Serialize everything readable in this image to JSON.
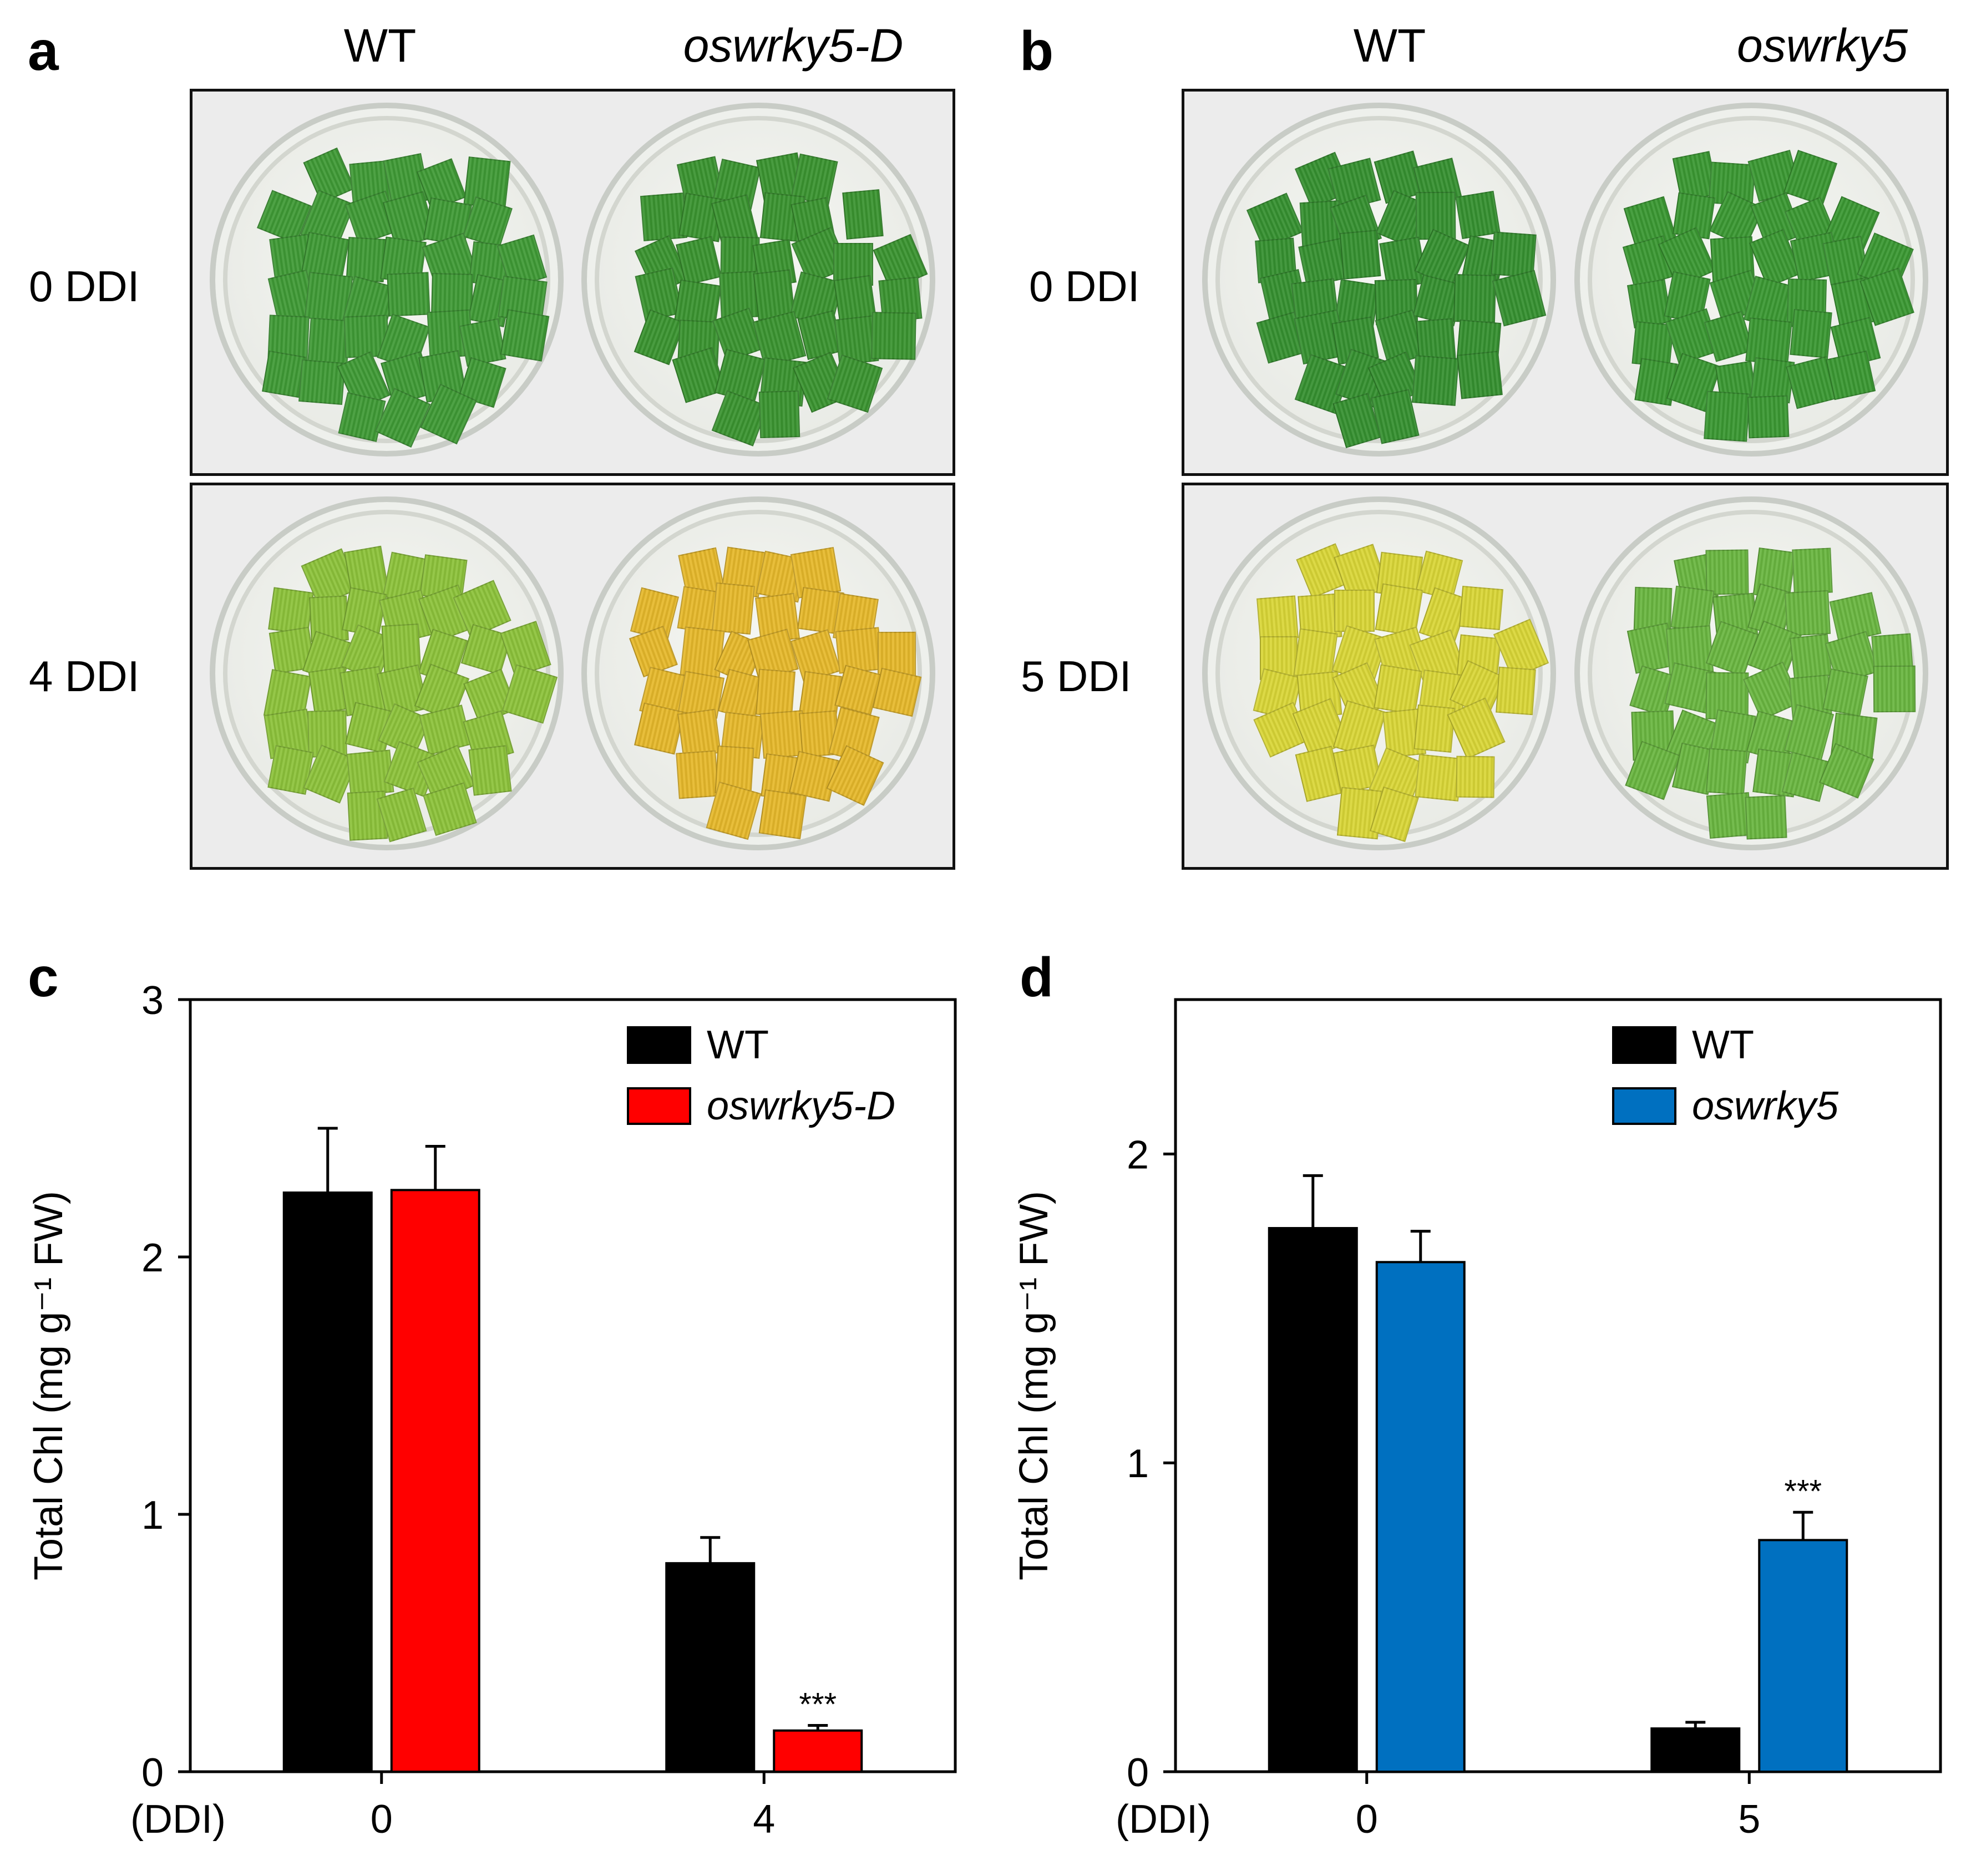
{
  "panels": {
    "a": {
      "letter": "a",
      "columns": [
        "WT",
        "oswrky5-D"
      ],
      "rows": [
        "0 DDI",
        "4 DDI"
      ],
      "row_colors": [
        [
          "#3f9a35",
          "#3a9430"
        ],
        [
          "#8cc23a",
          "#e6b82a"
        ]
      ]
    },
    "b": {
      "letter": "b",
      "columns": [
        "WT",
        "oswrky5"
      ],
      "rows": [
        "0 DDI",
        "5 DDI"
      ],
      "row_colors": [
        [
          "#359030",
          "#3a9832"
        ],
        [
          "#d9d636",
          "#69b640"
        ]
      ]
    },
    "c": {
      "letter": "c"
    },
    "d": {
      "letter": "d"
    }
  },
  "chart_data": [
    {
      "id": "c",
      "type": "bar",
      "ylabel": "Total Chl (mg g⁻¹ FW)",
      "xlabel": "(DDI)",
      "categories": [
        "0",
        "4"
      ],
      "ylim": [
        0,
        3
      ],
      "yticks": [
        "0",
        "1",
        "2",
        "3"
      ],
      "series": [
        {
          "name": "WT",
          "color": "#000000",
          "values": [
            2.25,
            0.81
          ],
          "errors": [
            0.25,
            0.1
          ]
        },
        {
          "name": "oswrky5-D",
          "color": "#ff0000",
          "values": [
            2.26,
            0.16
          ],
          "errors": [
            0.17,
            0.02
          ]
        }
      ],
      "annotations": [
        {
          "series": 1,
          "category": 1,
          "text": "***"
        }
      ],
      "legend_position": "top-right"
    },
    {
      "id": "d",
      "type": "bar",
      "ylabel": "Total Chl (mg g⁻¹ FW)",
      "xlabel": "(DDI)",
      "categories": [
        "0",
        "5"
      ],
      "ylim": [
        0,
        2.5
      ],
      "yticks": [
        "0",
        "1",
        "2"
      ],
      "series": [
        {
          "name": "WT",
          "color": "#000000",
          "values": [
            1.76,
            0.14
          ],
          "errors": [
            0.17,
            0.02
          ]
        },
        {
          "name": "oswrky5",
          "color": "#0070c0",
          "values": [
            1.65,
            0.75
          ],
          "errors": [
            0.1,
            0.09
          ]
        }
      ],
      "annotations": [
        {
          "series": 1,
          "category": 1,
          "text": "***"
        }
      ],
      "legend_position": "top-right"
    }
  ]
}
